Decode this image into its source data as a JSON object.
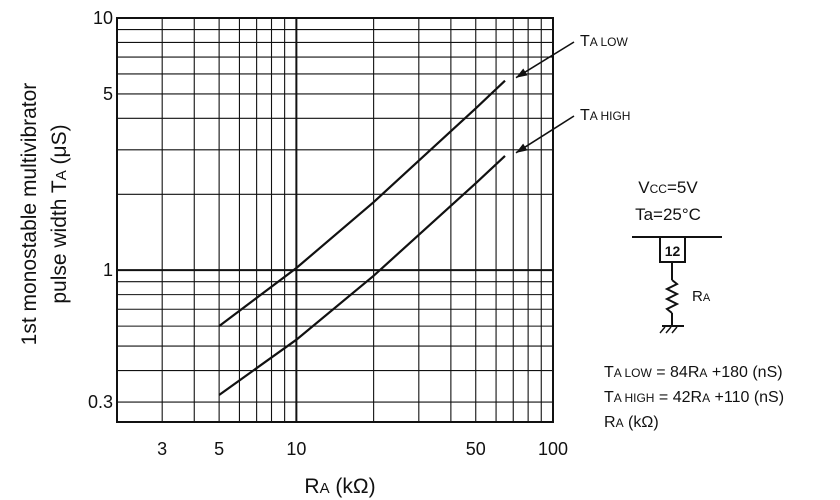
{
  "chart_data": {
    "type": "line",
    "x_scale": "log",
    "y_scale": "log",
    "xlim": [
      2,
      100
    ],
    "ylim": [
      0.25,
      10
    ],
    "grid": true,
    "xlabel": {
      "main": "R",
      "sub": "A",
      "unit": " (kΩ)"
    },
    "ylabel_line1": "1st monostable multivibrator",
    "ylabel_line2": {
      "main": "pulse width T",
      "sub": "A",
      "unit": " (μS)"
    },
    "x_ticks": [
      {
        "value": 3,
        "label": "3"
      },
      {
        "value": 5,
        "label": "5"
      },
      {
        "value": 10,
        "label": "10"
      },
      {
        "value": 50,
        "label": "50"
      },
      {
        "value": 100,
        "label": "100"
      }
    ],
    "y_ticks": [
      {
        "value": 0.3,
        "label": "0.3"
      },
      {
        "value": 1,
        "label": "1"
      },
      {
        "value": 5,
        "label": "5"
      },
      {
        "value": 10,
        "label": "10"
      }
    ],
    "series": [
      {
        "name": "TA LOW",
        "label_main": "T",
        "label_sub": "A LOW",
        "x": [
          5,
          10,
          20,
          50,
          65
        ],
        "y": [
          0.6,
          1.02,
          1.86,
          4.38,
          5.64
        ],
        "label_x": 62,
        "label_y": 5.8
      },
      {
        "name": "TA HIGH",
        "label_main": "T",
        "label_sub": "A HIGH",
        "x": [
          5,
          10,
          20,
          50,
          65
        ],
        "y": [
          0.32,
          0.53,
          0.95,
          2.21,
          2.84
        ],
        "label_x": 64,
        "label_y": 2.9
      }
    ],
    "annotations": {
      "conditions": [
        {
          "main": "V",
          "sub": "CC",
          "rest": "=5V"
        },
        {
          "main": "Ta=25°C",
          "sub": "",
          "rest": ""
        }
      ],
      "pin_label": "12",
      "resistor_label": {
        "main": "R",
        "sub": "A"
      },
      "formulas": [
        {
          "parts": [
            "T",
            "A LOW",
            " = 84R",
            "A",
            " +180 (nS)"
          ]
        },
        {
          "parts": [
            "T",
            "A HIGH",
            " = 42R",
            "A",
            " +110 (nS)"
          ]
        },
        {
          "parts": [
            "R",
            "A",
            " (kΩ)"
          ]
        }
      ]
    }
  }
}
